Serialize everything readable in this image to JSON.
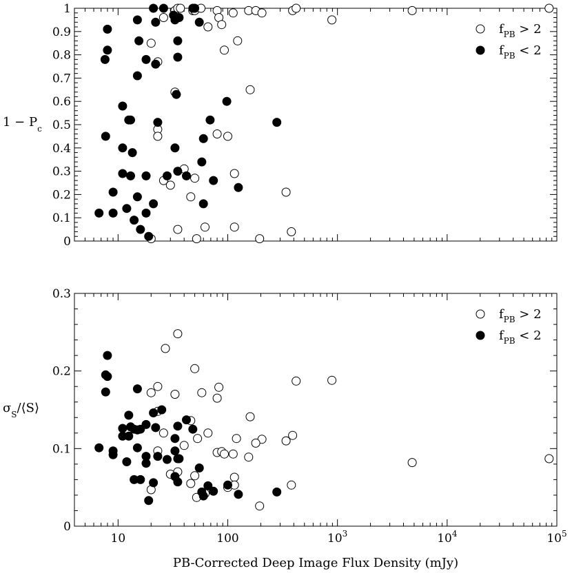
{
  "chart_data": [
    {
      "type": "scatter",
      "ylabel": {
        "main": "1 − P",
        "sub": "c"
      },
      "xscale": "log",
      "xlim": [
        4,
        100000
      ],
      "ylim": [
        0,
        1
      ],
      "yticks": [
        "0",
        "0.1",
        "0.2",
        "0.3",
        "0.4",
        "0.5",
        "0.6",
        "0.7",
        "0.8",
        "0.9",
        "1"
      ],
      "legend": {
        "position": "top-right",
        "entries": [
          {
            "marker": "open",
            "base": "f",
            "sub": "PB",
            "rel": " > 2"
          },
          {
            "marker": "filled",
            "base": "f",
            "sub": "PB",
            "rel": " < 2"
          }
        ]
      },
      "series": [
        {
          "name": "fPB > 2",
          "marker": "open",
          "points": [
            [
              20,
              0.85
            ],
            [
              23,
              0.77
            ],
            [
              26,
              0.96
            ],
            [
              33,
              0.99
            ],
            [
              35,
              1.0
            ],
            [
              37,
              1.0
            ],
            [
              48,
              0.99
            ],
            [
              50,
              0.99
            ],
            [
              57,
              1.0
            ],
            [
              66,
              0.92
            ],
            [
              80,
              0.99
            ],
            [
              83,
              0.96
            ],
            [
              88,
              0.93
            ],
            [
              93,
              0.82
            ],
            [
              112,
              0.98
            ],
            [
              123,
              0.86
            ],
            [
              155,
              0.99
            ],
            [
              180,
              0.99
            ],
            [
              205,
              0.98
            ],
            [
              390,
              0.99
            ],
            [
              420,
              1.0
            ],
            [
              890,
              0.95
            ],
            [
              4800,
              0.99
            ],
            [
              85000,
              1.0
            ],
            [
              33,
              0.64
            ],
            [
              160,
              0.65
            ],
            [
              23,
              0.48
            ],
            [
              23,
              0.45
            ],
            [
              80,
              0.46
            ],
            [
              100,
              0.45
            ],
            [
              40,
              0.31
            ],
            [
              26,
              0.26
            ],
            [
              30,
              0.24
            ],
            [
              50,
              0.27
            ],
            [
              46,
              0.19
            ],
            [
              115,
              0.29
            ],
            [
              340,
              0.21
            ],
            [
              20,
              0.01
            ],
            [
              35,
              0.05
            ],
            [
              52,
              0.01
            ],
            [
              62,
              0.06
            ],
            [
              115,
              0.06
            ],
            [
              195,
              0.01
            ],
            [
              380,
              0.04
            ]
          ]
        },
        {
          "name": "fPB < 2",
          "marker": "filled",
          "points": [
            [
              8,
              0.91
            ],
            [
              8,
              0.82
            ],
            [
              7.6,
              0.78
            ],
            [
              15,
              0.95
            ],
            [
              15.5,
              0.86
            ],
            [
              15,
              0.71
            ],
            [
              18,
              0.78
            ],
            [
              21,
              1.0
            ],
            [
              22,
              0.94
            ],
            [
              22,
              0.76
            ],
            [
              26,
              1.0
            ],
            [
              32,
              0.97
            ],
            [
              33,
              0.95
            ],
            [
              36,
              0.96
            ],
            [
              48,
              1.0
            ],
            [
              50,
              1.0
            ],
            [
              55,
              0.94
            ],
            [
              35,
              0.86
            ],
            [
              35,
              0.79
            ],
            [
              11,
              0.58
            ],
            [
              12.5,
              0.52
            ],
            [
              13,
              0.52
            ],
            [
              23,
              0.51
            ],
            [
              34,
              0.63
            ],
            [
              98,
              0.6
            ],
            [
              69,
              0.52
            ],
            [
              280,
              0.51
            ],
            [
              7.7,
              0.45
            ],
            [
              11,
              0.4
            ],
            [
              13.5,
              0.38
            ],
            [
              33,
              0.4
            ],
            [
              60,
              0.44
            ],
            [
              11,
              0.29
            ],
            [
              13,
              0.28
            ],
            [
              18,
              0.28
            ],
            [
              28,
              0.28
            ],
            [
              35,
              0.3
            ],
            [
              42,
              0.28
            ],
            [
              58,
              0.34
            ],
            [
              74,
              0.26
            ],
            [
              125,
              0.23
            ],
            [
              9,
              0.21
            ],
            [
              15,
              0.19
            ],
            [
              21,
              0.16
            ],
            [
              60,
              0.16
            ],
            [
              6.7,
              0.12
            ],
            [
              9,
              0.12
            ],
            [
              12,
              0.14
            ],
            [
              18,
              0.12
            ],
            [
              14,
              0.09
            ],
            [
              16,
              0.05
            ],
            [
              19,
              0.02
            ]
          ]
        }
      ]
    },
    {
      "type": "scatter",
      "ylabel": {
        "main": "σ",
        "sub": "S",
        "after": "/⟨S⟩"
      },
      "xlabel": "PB-Corrected Deep Image Flux Density (mJy)",
      "xscale": "log",
      "xlim": [
        4,
        100000
      ],
      "ylim": [
        0,
        0.3
      ],
      "yticks": [
        "0",
        "0.1",
        "0.2",
        "0.3"
      ],
      "xticks": [
        {
          "base": "10",
          "exp": ""
        },
        {
          "base": "100",
          "exp": ""
        },
        {
          "base": "10",
          "exp": "3"
        },
        {
          "base": "10",
          "exp": "4"
        },
        {
          "base": "10",
          "exp": "5"
        }
      ],
      "legend": {
        "position": "top-right",
        "entries": [
          {
            "marker": "open",
            "base": "f",
            "sub": "PB",
            "rel": " > 2"
          },
          {
            "marker": "filled",
            "base": "f",
            "sub": "PB",
            "rel": " < 2"
          }
        ]
      },
      "series": [
        {
          "name": "fPB > 2",
          "marker": "open",
          "points": [
            [
              35,
              0.248
            ],
            [
              27,
              0.229
            ],
            [
              50,
              0.203
            ],
            [
              20,
              0.172
            ],
            [
              23,
              0.18
            ],
            [
              33,
              0.17
            ],
            [
              58,
              0.172
            ],
            [
              80,
              0.165
            ],
            [
              83,
              0.179
            ],
            [
              160,
              0.141
            ],
            [
              420,
              0.187
            ],
            [
              890,
              0.188
            ],
            [
              23,
              0.148
            ],
            [
              46,
              0.136
            ],
            [
              26,
              0.12
            ],
            [
              40,
              0.104
            ],
            [
              53,
              0.113
            ],
            [
              66,
              0.12
            ],
            [
              120,
              0.113
            ],
            [
              205,
              0.112
            ],
            [
              340,
              0.11
            ],
            [
              390,
              0.117
            ],
            [
              23,
              0.097
            ],
            [
              80,
              0.095
            ],
            [
              88,
              0.096
            ],
            [
              93,
              0.093
            ],
            [
              112,
              0.093
            ],
            [
              155,
              0.089
            ],
            [
              180,
              0.107
            ],
            [
              4800,
              0.082
            ],
            [
              85000,
              0.087
            ],
            [
              30,
              0.067
            ],
            [
              35,
              0.07
            ],
            [
              50,
              0.065
            ],
            [
              46,
              0.055
            ],
            [
              52,
              0.037
            ],
            [
              62,
              0.042
            ],
            [
              100,
              0.05
            ],
            [
              115,
              0.063
            ],
            [
              115,
              0.053
            ],
            [
              195,
              0.026
            ],
            [
              380,
              0.053
            ],
            [
              20,
              0.047
            ]
          ]
        },
        {
          "name": "fPB < 2",
          "marker": "filled",
          "points": [
            [
              8,
              0.22
            ],
            [
              7.7,
              0.195
            ],
            [
              8,
              0.193
            ],
            [
              7.7,
              0.173
            ],
            [
              15,
              0.177
            ],
            [
              12.5,
              0.143
            ],
            [
              21,
              0.146
            ],
            [
              25,
              0.15
            ],
            [
              11,
              0.126
            ],
            [
              11,
              0.116
            ],
            [
              12.5,
              0.116
            ],
            [
              13,
              0.128
            ],
            [
              14,
              0.125
            ],
            [
              15,
              0.124
            ],
            [
              16,
              0.125
            ],
            [
              18,
              0.131
            ],
            [
              22,
              0.127
            ],
            [
              33,
              0.113
            ],
            [
              35,
              0.129
            ],
            [
              42,
              0.137
            ],
            [
              48,
              0.125
            ],
            [
              6.7,
              0.101
            ],
            [
              9,
              0.097
            ],
            [
              9,
              0.092
            ],
            [
              15,
              0.101
            ],
            [
              18,
              0.09
            ],
            [
              23,
              0.09
            ],
            [
              28,
              0.086
            ],
            [
              33,
              0.097
            ],
            [
              35,
              0.087
            ],
            [
              36,
              0.087
            ],
            [
              12,
              0.083
            ],
            [
              18,
              0.081
            ],
            [
              55,
              0.075
            ],
            [
              14,
              0.06
            ],
            [
              16,
              0.06
            ],
            [
              21,
              0.056
            ],
            [
              33,
              0.064
            ],
            [
              35,
              0.057
            ],
            [
              58,
              0.044
            ],
            [
              60,
              0.039
            ],
            [
              66,
              0.052
            ],
            [
              74,
              0.045
            ],
            [
              100,
              0.053
            ],
            [
              125,
              0.041
            ],
            [
              280,
              0.044
            ],
            [
              19,
              0.033
            ]
          ]
        }
      ]
    }
  ]
}
